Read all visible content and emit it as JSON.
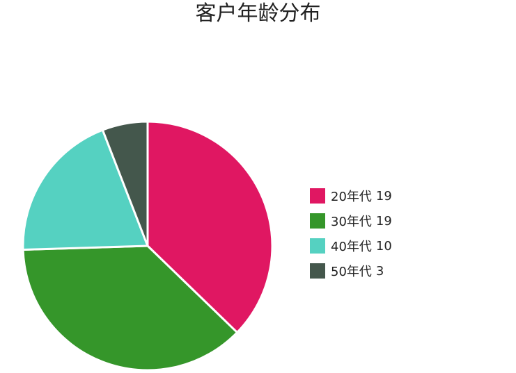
{
  "chart_data": {
    "type": "pie",
    "title": "客户年龄分布",
    "start_angle_deg": 0,
    "direction": "clockwise",
    "legend_position": "right",
    "slices": [
      {
        "label": "20年代",
        "value": 19,
        "color": "#e01762"
      },
      {
        "label": "30年代",
        "value": 19,
        "color": "#35962a"
      },
      {
        "label": "40年代",
        "value": 10,
        "color": "#55d1c1"
      },
      {
        "label": "50年代",
        "value": 3,
        "color": "#44574c"
      }
    ]
  }
}
